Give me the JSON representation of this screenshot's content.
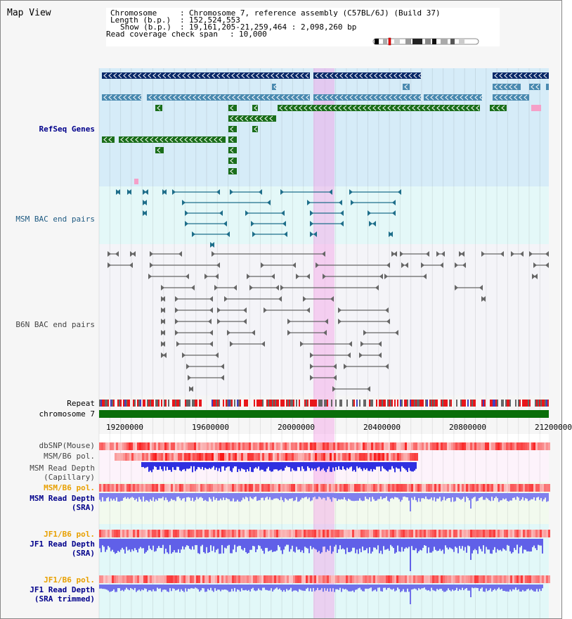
{
  "page": {
    "title": "Map View"
  },
  "header": {
    "chromosome_label": "Chromosome",
    "chromosome_value": "Chromosome 7, reference assembly (C57BL/6J) (Build 37)",
    "length_label": "Length (b.p.)",
    "length_value": "152,524,553",
    "show_label": "Show (b.p.)",
    "show_value": "19,161,205-21,259,464 : 2,098,260 bp",
    "coverage_label": "Read coverage check span",
    "coverage_value": "10,000",
    "colon": ":"
  },
  "tracks": {
    "refseq": "RefSeq Genes",
    "msm_bac": "MSM BAC end pairs",
    "b6n_bac": "B6N BAC end pairs",
    "repeat": "Repeat",
    "chromosome": "chromosome 7",
    "dbsnp": "dbSNP(Mouse)",
    "msm_b6_pol_cap": "MSM/B6 pol.",
    "msm_read_depth_cap_1": "MSM Read Depth",
    "msm_read_depth_cap_2": "(Capillary)",
    "msm_b6_pol_sra": "MSM/B6 pol.",
    "msm_read_depth_sra_1": "MSM Read Depth",
    "msm_read_depth_sra_2": "(SRA)",
    "jf1_b6_pol": "JF1/B6 pol.",
    "jf1_read_depth_1": "JF1 Read Depth",
    "jf1_read_depth_2": "(SRA)",
    "jf1_b6_pol_trim": "JF1/B6 pol.",
    "jf1_read_depth_trim_1": "JF1 Read Depth",
    "jf1_read_depth_trim_2": "(SRA trimmed)"
  },
  "axis": {
    "ticks": [
      "19200000",
      "19600000",
      "20000000",
      "20400000",
      "20800000",
      "21200000"
    ]
  },
  "colors": {
    "refseq_bg": "#d6ecf8",
    "msm_bg": "#e4f8f8",
    "b6n_bg": "#f4f4f8",
    "gene_navy": "#0a2a6a",
    "gene_steel": "#4a8ab0",
    "gene_green": "#1a6e1a",
    "highlight": "#f5a0e6"
  }
}
